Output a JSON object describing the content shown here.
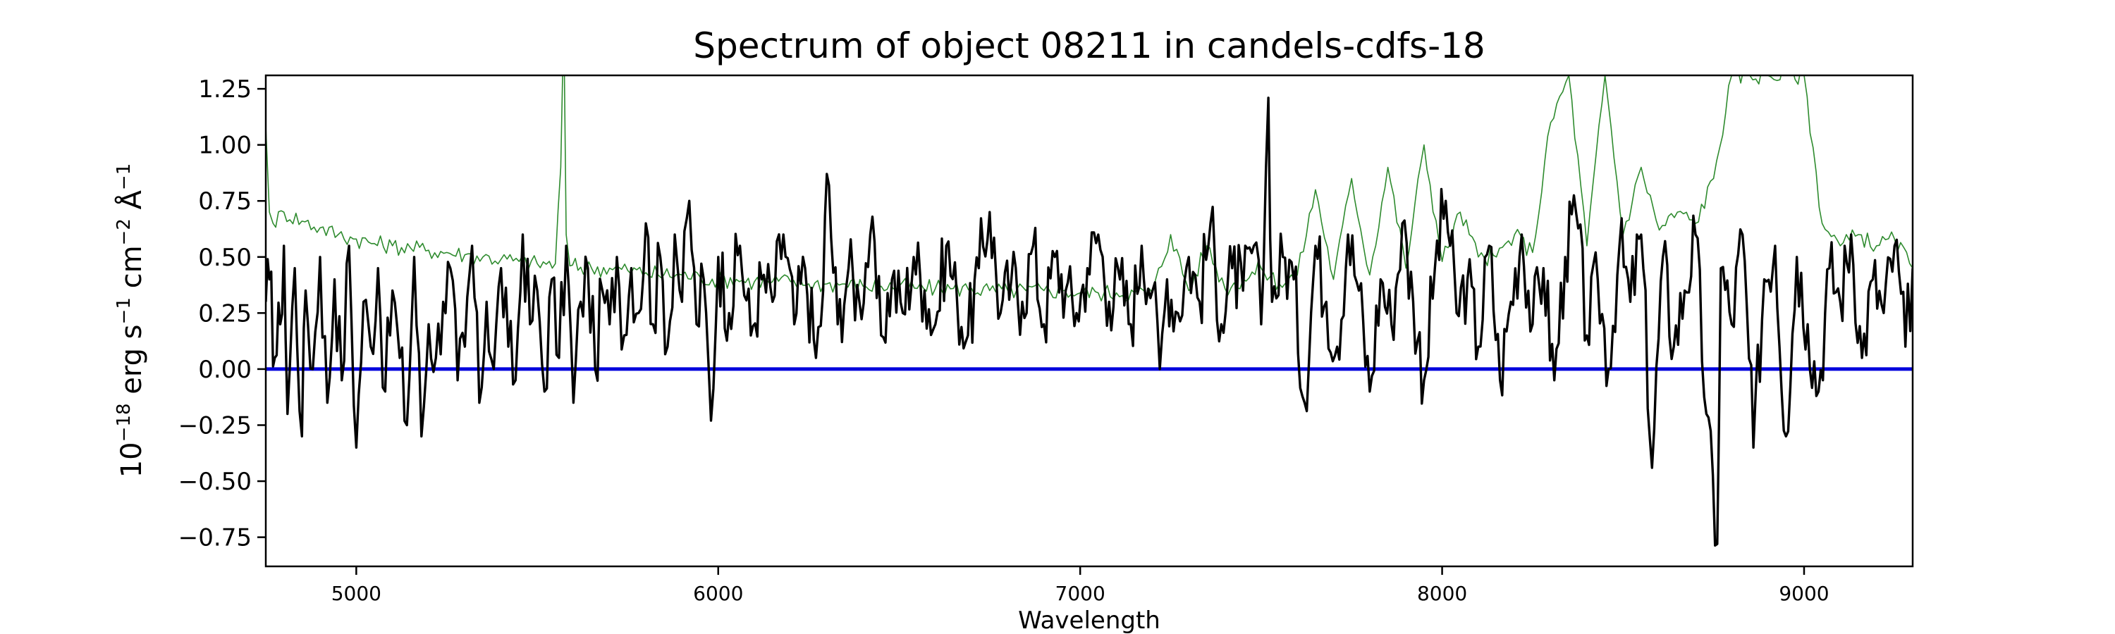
{
  "chart_data": {
    "type": "line",
    "title": "Spectrum of object 08211 in candels-cdfs-18",
    "xlabel": "Wavelength",
    "ylabel": {
      "prefix": "10",
      "exp1": "−18",
      "mid1": " erg s",
      "exp2": "−1",
      "mid2": " cm",
      "exp3": "−2",
      "mid3": " Å",
      "exp4": "−1"
    },
    "xlim": [
      4750,
      9300
    ],
    "ylim": [
      -0.88,
      1.31
    ],
    "x_ticks": [
      {
        "value": 5000,
        "label": "5000"
      },
      {
        "value": 6000,
        "label": "6000"
      },
      {
        "value": 7000,
        "label": "7000"
      },
      {
        "value": 8000,
        "label": "8000"
      },
      {
        "value": 9000,
        "label": "9000"
      }
    ],
    "y_ticks": [
      {
        "value": 1.25,
        "label": "1.25"
      },
      {
        "value": 1.0,
        "label": "1.00"
      },
      {
        "value": 0.75,
        "label": "0.75"
      },
      {
        "value": 0.5,
        "label": "0.50"
      },
      {
        "value": 0.25,
        "label": "0.25"
      },
      {
        "value": 0.0,
        "label": "0.00"
      },
      {
        "value": -0.25,
        "label": "−0.25"
      },
      {
        "value": -0.5,
        "label": "−0.50"
      },
      {
        "value": -0.75,
        "label": "−0.75"
      }
    ],
    "grid": false,
    "colors": {
      "flux": "#000000",
      "error": "#2e8b2e",
      "zero": "#0000dd"
    },
    "series": [
      {
        "role": "flux",
        "x": [
          4750,
          4760,
          4775,
          4790,
          4800,
          4810,
          4830,
          4850,
          4860,
          4880,
          4900,
          4920,
          4940,
          4960,
          4980,
          5000,
          5020,
          5040,
          5060,
          5080,
          5100,
          5120,
          5140,
          5160,
          5180,
          5200,
          5220,
          5240,
          5260,
          5280,
          5300,
          5320,
          5340,
          5360,
          5380,
          5400,
          5420,
          5440,
          5460,
          5480,
          5500,
          5520,
          5540,
          5560,
          5580,
          5600,
          5620,
          5640,
          5660,
          5680,
          5700,
          5720,
          5740,
          5760,
          5780,
          5800,
          5820,
          5840,
          5860,
          5880,
          5900,
          5920,
          5940,
          5960,
          5980,
          6000,
          6030,
          6060,
          6090,
          6120,
          6150,
          6180,
          6210,
          6240,
          6270,
          6290,
          6300,
          6330,
          6360,
          6390,
          6420,
          6450,
          6480,
          6510,
          6540,
          6570,
          6600,
          6630,
          6660,
          6690,
          6720,
          6750,
          6780,
          6810,
          6840,
          6870,
          6900,
          6930,
          6960,
          6990,
          7020,
          7050,
          7080,
          7110,
          7140,
          7170,
          7200,
          7220,
          7240,
          7270,
          7300,
          7330,
          7360,
          7390,
          7420,
          7450,
          7480,
          7500,
          7520,
          7530,
          7560,
          7590,
          7620,
          7650,
          7680,
          7710,
          7740,
          7770,
          7800,
          7830,
          7860,
          7890,
          7920,
          7950,
          7980,
          8010,
          8040,
          8070,
          8100,
          8130,
          8160,
          8190,
          8220,
          8250,
          8280,
          8310,
          8340,
          8370,
          8400,
          8430,
          8460,
          8490,
          8520,
          8550,
          8580,
          8610,
          8640,
          8670,
          8700,
          8730,
          8760,
          8770,
          8800,
          8830,
          8860,
          8890,
          8920,
          8950,
          8980,
          9010,
          9040,
          9070,
          9100,
          9130,
          9160,
          9190,
          9220,
          9250,
          9280,
          9300
        ],
        "values": [
          0.3,
          0.4,
          0.05,
          0.2,
          0.55,
          -0.2,
          0.45,
          -0.3,
          0.35,
          0.0,
          0.5,
          -0.15,
          0.4,
          -0.05,
          0.55,
          -0.35,
          0.3,
          0.1,
          0.45,
          -0.1,
          0.35,
          0.05,
          -0.25,
          0.5,
          -0.3,
          0.2,
          0.05,
          0.3,
          0.45,
          -0.05,
          0.1,
          0.55,
          -0.15,
          0.3,
          0.0,
          0.45,
          0.1,
          -0.05,
          0.6,
          0.2,
          0.35,
          -0.1,
          0.4,
          0.05,
          0.55,
          -0.15,
          0.3,
          0.45,
          0.0,
          0.35,
          0.2,
          0.5,
          0.15,
          0.45,
          0.25,
          0.65,
          0.2,
          0.5,
          0.1,
          0.6,
          0.3,
          0.75,
          0.2,
          0.4,
          -0.23,
          0.5,
          0.25,
          0.55,
          0.15,
          0.4,
          0.3,
          0.6,
          0.2,
          0.45,
          0.05,
          0.35,
          0.87,
          0.2,
          0.45,
          0.3,
          0.6,
          0.15,
          0.4,
          0.25,
          0.5,
          0.35,
          0.2,
          0.55,
          0.3,
          0.15,
          0.45,
          0.7,
          0.25,
          0.4,
          0.3,
          0.55,
          0.2,
          0.5,
          0.35,
          0.25,
          0.45,
          0.6,
          0.3,
          0.4,
          0.2,
          0.55,
          0.35,
          0.0,
          0.4,
          0.25,
          0.5,
          0.3,
          0.65,
          0.2,
          0.45,
          0.35,
          0.55,
          0.2,
          1.21,
          0.3,
          0.5,
          0.4,
          -0.15,
          0.55,
          0.3,
          0.1,
          0.6,
          0.35,
          -0.1,
          0.4,
          0.2,
          0.65,
          0.3,
          -0.05,
          0.45,
          0.75,
          0.25,
          0.4,
          0.1,
          0.55,
          -0.05,
          0.3,
          0.6,
          0.2,
          0.45,
          -0.05,
          0.5,
          0.7,
          0.15,
          0.4,
          0.0,
          0.55,
          0.3,
          0.6,
          -0.44,
          0.5,
          0.1,
          0.35,
          0.6,
          -0.2,
          -0.78,
          0.45,
          0.2,
          0.6,
          -0.35,
          0.4,
          0.55,
          -0.3,
          0.5,
          0.2,
          -0.1,
          0.45,
          0.3,
          0.6,
          0.05,
          0.4,
          0.25,
          0.55,
          0.1,
          0.45
        ],
        "jitter_amplitude": 0.18
      },
      {
        "role": "error",
        "x": [
          4750,
          4760,
          4770,
          4800,
          4850,
          4900,
          4950,
          5000,
          5050,
          5100,
          5150,
          5200,
          5250,
          5300,
          5350,
          5400,
          5450,
          5500,
          5550,
          5565,
          5570,
          5575,
          5580,
          5590,
          5650,
          5700,
          5750,
          5800,
          5850,
          5900,
          5950,
          6000,
          6050,
          6100,
          6150,
          6200,
          6250,
          6300,
          6350,
          6400,
          6450,
          6500,
          6550,
          6600,
          6650,
          6700,
          6750,
          6800,
          6850,
          6900,
          6950,
          7000,
          7050,
          7100,
          7150,
          7200,
          7250,
          7300,
          7350,
          7400,
          7450,
          7500,
          7550,
          7600,
          7650,
          7700,
          7750,
          7800,
          7850,
          7900,
          7950,
          8000,
          8050,
          8100,
          8150,
          8200,
          8250,
          8300,
          8350,
          8400,
          8450,
          8500,
          8550,
          8600,
          8650,
          8700,
          8750,
          8800,
          8850,
          8900,
          8950,
          9000,
          9050,
          9100,
          9150,
          9200,
          9250,
          9300
        ],
        "values": [
          1.08,
          0.7,
          0.65,
          0.7,
          0.66,
          0.63,
          0.6,
          0.58,
          0.56,
          0.55,
          0.54,
          0.53,
          0.52,
          0.51,
          0.5,
          0.49,
          0.48,
          0.47,
          0.47,
          0.9,
          1.31,
          1.31,
          0.6,
          0.46,
          0.45,
          0.45,
          0.44,
          0.43,
          0.42,
          0.42,
          0.41,
          0.4,
          0.4,
          0.39,
          0.39,
          0.39,
          0.38,
          0.38,
          0.38,
          0.37,
          0.37,
          0.37,
          0.36,
          0.36,
          0.36,
          0.36,
          0.35,
          0.35,
          0.35,
          0.35,
          0.35,
          0.34,
          0.34,
          0.34,
          0.34,
          0.34,
          0.6,
          0.35,
          0.55,
          0.36,
          0.4,
          0.45,
          0.38,
          0.42,
          0.8,
          0.4,
          0.85,
          0.42,
          0.9,
          0.45,
          1.0,
          0.48,
          0.7,
          0.5,
          0.5,
          0.6,
          0.52,
          1.1,
          1.31,
          0.55,
          1.31,
          0.6,
          0.9,
          0.62,
          0.7,
          0.65,
          0.85,
          1.31,
          1.31,
          1.31,
          1.31,
          1.31,
          0.65,
          0.55,
          0.6,
          0.55,
          0.58,
          0.45
        ],
        "jitter_amplitude": 0.04
      },
      {
        "role": "zero",
        "x": [
          4750,
          9300
        ],
        "values": [
          0.0,
          0.0
        ]
      }
    ]
  }
}
